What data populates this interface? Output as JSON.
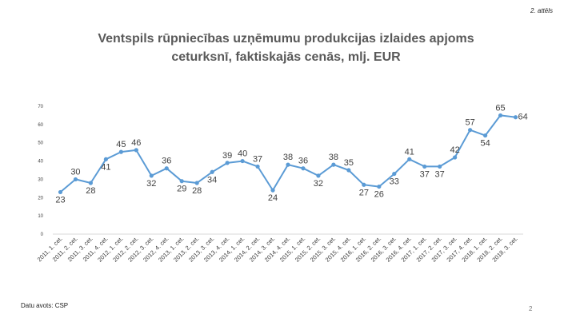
{
  "figure_label": "2. attēls",
  "title_line1": "Ventspils rūpniecības uzņēmumu produkcijas izlaides apjoms",
  "title_line2": "ceturksnī, faktiskajās cenās, mlj. EUR",
  "source": "Datu avots: CSP",
  "page_number": "2",
  "colors": {
    "line": "#5B9BD5",
    "marker": "#5B9BD5",
    "text": "#404040",
    "axis": "#D9D9D9"
  },
  "chart_data": {
    "type": "line",
    "title": "Ventspils rūpniecības uzņēmumu produkcijas izlaides apjoms ceturksnī, faktiskajās cenās, mlj. EUR",
    "xlabel": "",
    "ylabel": "",
    "ylim": [
      0,
      70
    ],
    "yticks": [
      0,
      10,
      20,
      30,
      40,
      50,
      60,
      70
    ],
    "grid": false,
    "categories": [
      "2011, 1. cet.",
      "2011, 2. cet.",
      "2011, 3. cet.",
      "2011, 4. cet.",
      "2012, 1. cet.",
      "2012, 2. cet.",
      "2012, 3. cet.",
      "2012, 4. cet.",
      "2013, 1. cet.",
      "2013, 2. cet.",
      "2013, 3. cet.",
      "2013, 4. cet.",
      "2014, 1. cet.",
      "2014, 2. cet.",
      "2014, 3. cet.",
      "2014, 4. cet.",
      "2015, 1. cet.",
      "2015, 2. cet.",
      "2015, 3. cet.",
      "2015, 4. cet.",
      "2016, 1. cet.",
      "2016, 2. cet.",
      "2016, 3. cet.",
      "2016, 4. cet.",
      "2017, 1. cet.",
      "2017, 2. cet.",
      "2017, 3. cet.",
      "2017, 4. cet.",
      "2018, 1. cet.",
      "2018, 2. cet.",
      "2018, 3. cet."
    ],
    "values": [
      23,
      30,
      28,
      41,
      45,
      46,
      32,
      36,
      29,
      28,
      34,
      39,
      40,
      37,
      24,
      38,
      36,
      32,
      38,
      35,
      27,
      26,
      33,
      41,
      37,
      37,
      42,
      57,
      54,
      65,
      64
    ],
    "label_position": [
      "below",
      "above",
      "below",
      "below",
      "above",
      "above",
      "below",
      "above",
      "below",
      "below",
      "below",
      "above",
      "above",
      "above",
      "below",
      "above",
      "above",
      "below",
      "above",
      "above",
      "below",
      "below",
      "below",
      "above",
      "below",
      "below",
      "above",
      "above",
      "below",
      "above",
      "right"
    ]
  }
}
